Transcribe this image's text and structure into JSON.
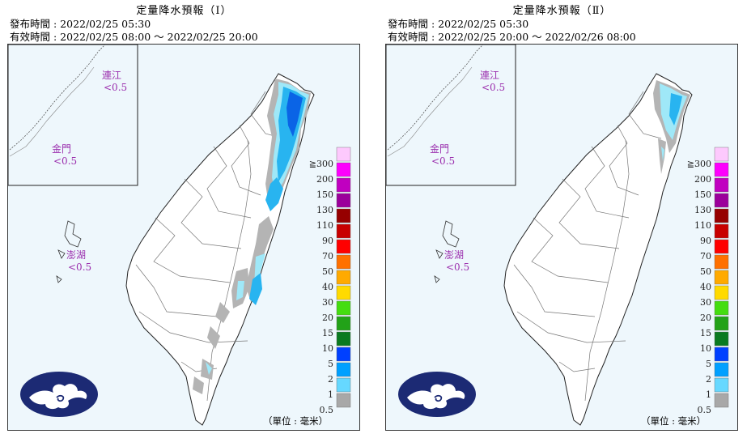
{
  "panels": [
    {
      "title": "定量降水預報（Ⅰ）",
      "issued": "發布時間 : 2022/02/25 05:30",
      "valid": "有效時間 : 2022/02/25 08:00 ～ 2022/02/25 20:00",
      "insets": {
        "lienchiang": {
          "name": "連江",
          "value": "<0.5"
        },
        "kinmen": {
          "name": "金門",
          "value": "<0.5"
        },
        "penghu": {
          "name": "澎湖",
          "value": "<0.5"
        }
      },
      "unit": "（單位 : 毫米）"
    },
    {
      "title": "定量降水預報（Ⅱ）",
      "issued": "發布時間 : 2022/02/25 05:30",
      "valid": "有效時間 : 2022/02/25 20:00 ～ 2022/02/26 08:00",
      "insets": {
        "lienchiang": {
          "name": "連江",
          "value": "<0.5"
        },
        "kinmen": {
          "name": "金門",
          "value": "<0.5"
        },
        "penghu": {
          "name": "澎湖",
          "value": "<0.5"
        }
      },
      "unit": "（單位 : 毫米）"
    }
  ],
  "legend": {
    "levels": [
      "≧300",
      "200",
      "150",
      "130",
      "110",
      "90",
      "70",
      "50",
      "40",
      "30",
      "20",
      "15",
      "10",
      "5",
      "2",
      "1",
      "0.5"
    ],
    "colors": [
      "#fdc9fd",
      "#fd00fd",
      "#c000c0",
      "#9b009b",
      "#960000",
      "#c80000",
      "#ff0000",
      "#ff7000",
      "#ffaa00",
      "#ffda00",
      "#44dd10",
      "#22a218",
      "#0a7a20",
      "#0040ff",
      "#00a0ff",
      "#66d8ff",
      "#a8a8a8"
    ]
  },
  "colors": {
    "sea": "#eef7fc",
    "rain_light": "#9fe8f8",
    "rain_mid": "#28b4f0",
    "rain_heavy": "#0a64e6",
    "trace": "#b4b4b4",
    "logo": "#1c2a74"
  },
  "icons": {
    "logo": "cwb-cloud-logo-icon"
  }
}
